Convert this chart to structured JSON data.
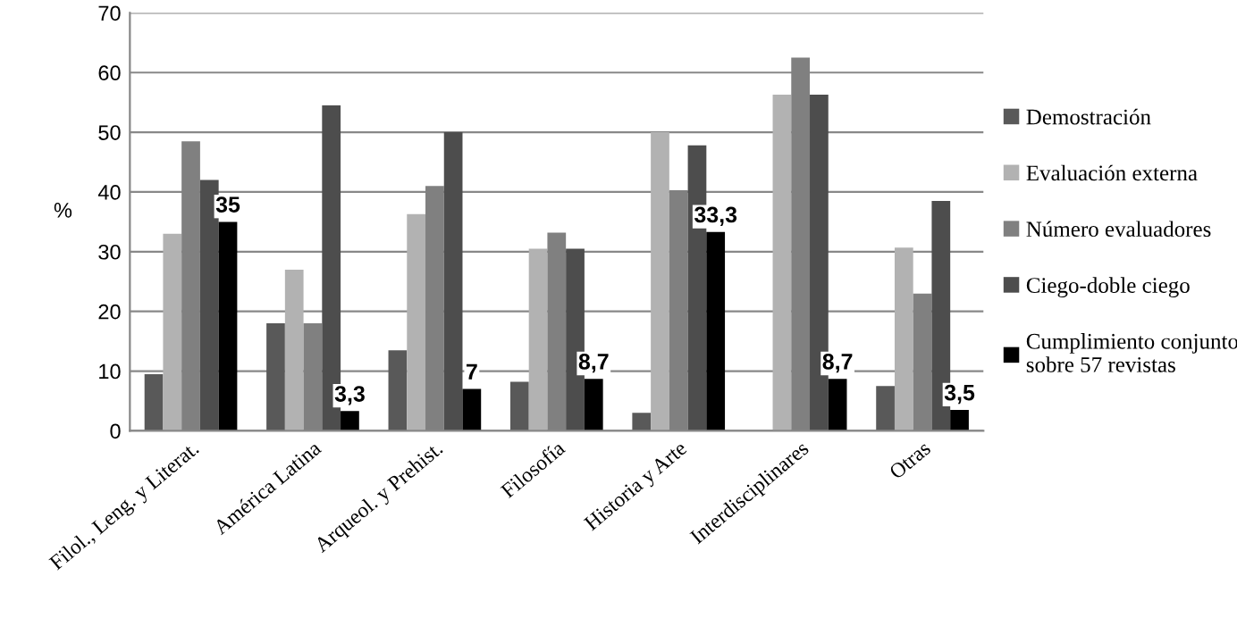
{
  "chart_data": {
    "type": "bar",
    "ylabel": "%",
    "categories": [
      "Filol., Leng. y Literat.",
      "América Latina",
      "Arqueol. y Prehist.",
      "Filosofía",
      "Historia y Arte",
      "Interdisciplinares",
      "Otras"
    ],
    "series": [
      {
        "name": "Demostración",
        "color": "#595959",
        "values": [
          9.5,
          18,
          13.5,
          8.2,
          3,
          0,
          7.5
        ]
      },
      {
        "name": "Evaluación externa",
        "color": "#b2b2b2",
        "values": [
          33,
          27,
          36.3,
          30.5,
          50,
          56.3,
          30.7
        ]
      },
      {
        "name": "Número evaluadores",
        "color": "#808080",
        "values": [
          48.5,
          18,
          41,
          33.2,
          40.3,
          62.5,
          23
        ]
      },
      {
        "name": "Ciego-doble ciego",
        "color": "#4d4d4d",
        "values": [
          42,
          54.5,
          50,
          30.5,
          47.8,
          56.3,
          38.5
        ]
      },
      {
        "name": "Cumplimiento conjunto\nsobre 57 revistas",
        "color": "#000000",
        "values": [
          35,
          3.3,
          7,
          8.7,
          33.3,
          8.7,
          3.5
        ],
        "value_labels": [
          "35",
          "3,3",
          "7",
          "8,7",
          "33,3",
          "8,7",
          "3,5"
        ]
      }
    ],
    "ylim": [
      0,
      70
    ],
    "yticks": [
      0,
      10,
      20,
      30,
      40,
      50,
      60,
      70
    ],
    "grid": "y",
    "legend": "right"
  }
}
